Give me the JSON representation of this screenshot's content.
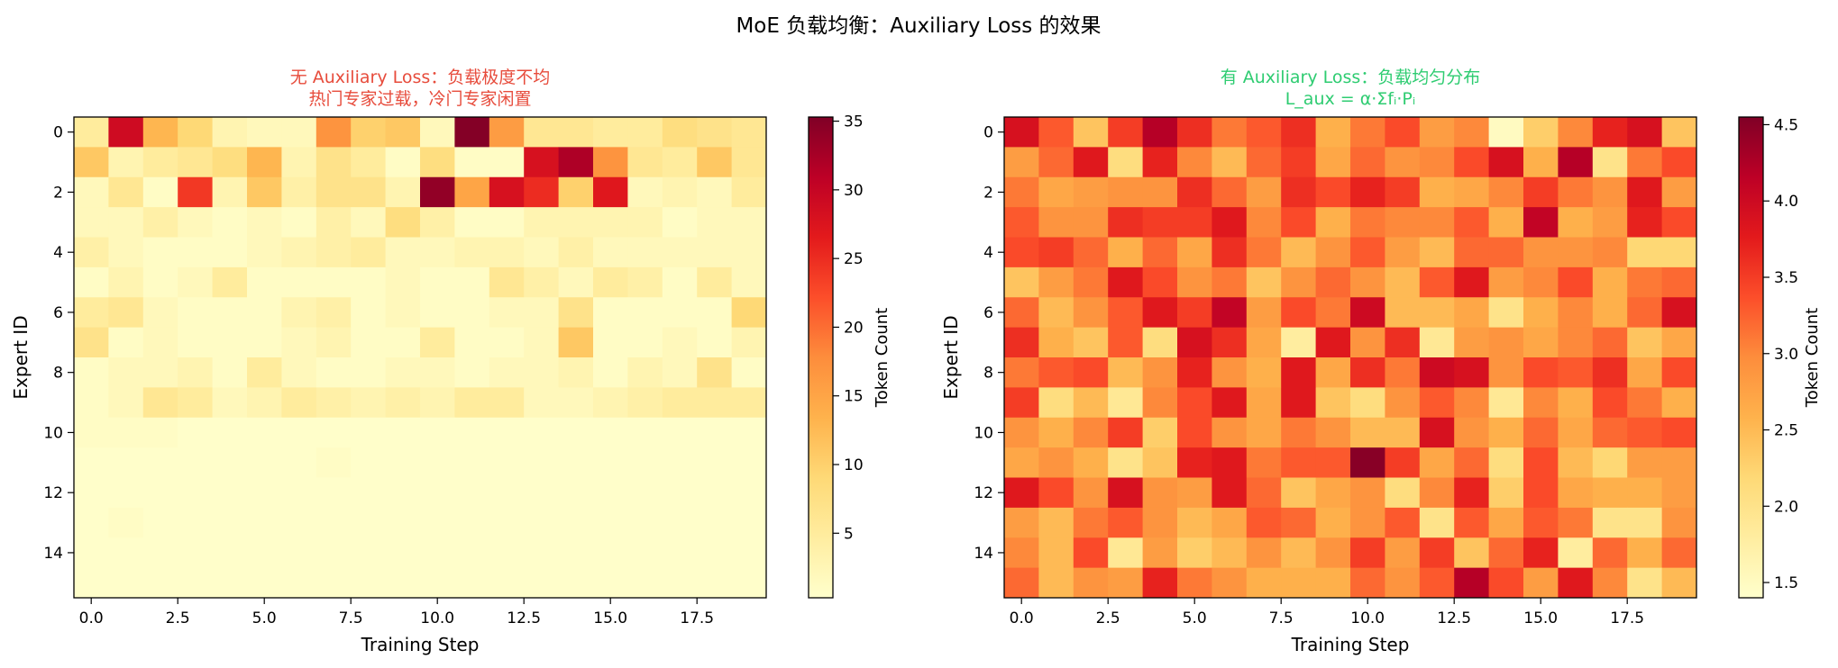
{
  "figure": {
    "suptitle": "MoE 负载均衡：Auxiliary Loss 的效果"
  },
  "colors": {
    "title_left": "#e74c3c",
    "title_right": "#2ecc71",
    "colormap": [
      "#ffffcc",
      "#ffeda0",
      "#fed976",
      "#feb24c",
      "#fd8d3c",
      "#fc4e2a",
      "#e31a1c",
      "#bd0026",
      "#800026"
    ]
  },
  "chart_data": [
    {
      "type": "heatmap",
      "title_line1": "无 Auxiliary Loss：负载极度不均",
      "title_line2": "热门专家过载，冷门专家闲置",
      "xlabel": "Training Step",
      "ylabel": "Expert ID",
      "colorbar_label": "Token Count",
      "x_ticks": [
        0.0,
        2.5,
        5.0,
        7.5,
        10.0,
        12.5,
        15.0,
        17.5
      ],
      "x_tick_labels": [
        "0.0",
        "2.5",
        "5.0",
        "7.5",
        "10.0",
        "12.5",
        "15.0",
        "17.5"
      ],
      "y_ticks": [
        0,
        2,
        4,
        6,
        8,
        10,
        12,
        14
      ],
      "y_tick_labels": [
        "0",
        "2",
        "4",
        "6",
        "8",
        "10",
        "12",
        "14"
      ],
      "vmin": 0.3,
      "vmax": 35.3,
      "colorbar_ticks": [
        5,
        10,
        15,
        20,
        25,
        30,
        35
      ],
      "colorbar_tick_labels": [
        "5",
        "10",
        "15",
        "20",
        "25",
        "30",
        "35"
      ],
      "rows": 16,
      "cols": 20,
      "values": [
        [
          5,
          29,
          13,
          9,
          3,
          2,
          2,
          17,
          10,
          11,
          2,
          35,
          16,
          6,
          6,
          5,
          5,
          8,
          7,
          6
        ],
        [
          11,
          3,
          5,
          6,
          8,
          13,
          3,
          7,
          5,
          1,
          8,
          1,
          1,
          28,
          32,
          17,
          6,
          5,
          11,
          6
        ],
        [
          2,
          6,
          1,
          24,
          3,
          11,
          4,
          7,
          7,
          3,
          34,
          15,
          28,
          25,
          10,
          27,
          2,
          3,
          2,
          5
        ],
        [
          2,
          2,
          4,
          2,
          1,
          2,
          1,
          4,
          2,
          8,
          4,
          1,
          1,
          3,
          3,
          3,
          3,
          1,
          2,
          2
        ],
        [
          4,
          2,
          1,
          1,
          1,
          2,
          3,
          4,
          5,
          2,
          2,
          3,
          3,
          2,
          4,
          2,
          2,
          2,
          2,
          2
        ],
        [
          1,
          3,
          1,
          2,
          5,
          1,
          1,
          1,
          1,
          2,
          1,
          1,
          6,
          4,
          2,
          5,
          4,
          1,
          5,
          2
        ],
        [
          5,
          6,
          2,
          1,
          1,
          1,
          3,
          4,
          1,
          2,
          1,
          1,
          2,
          2,
          7,
          1,
          1,
          1,
          1,
          9
        ],
        [
          7,
          1,
          2,
          1,
          1,
          1,
          2,
          3,
          1,
          1,
          5,
          1,
          1,
          2,
          11,
          1,
          1,
          2,
          1,
          3
        ],
        [
          1,
          2,
          2,
          3,
          1,
          5,
          2,
          1,
          1,
          2,
          2,
          1,
          2,
          2,
          3,
          1,
          3,
          2,
          7,
          1
        ],
        [
          1,
          2,
          6,
          5,
          2,
          3,
          5,
          4,
          3,
          4,
          3,
          5,
          5,
          2,
          2,
          3,
          4,
          5,
          5,
          5
        ],
        [
          1,
          1,
          1,
          0.5,
          0.5,
          0.5,
          0.5,
          0.5,
          0.5,
          0.5,
          0.5,
          0.5,
          0.5,
          0.5,
          0.5,
          0.5,
          0.5,
          0.5,
          0.5,
          0.5
        ],
        [
          0.5,
          0.5,
          0.5,
          0.5,
          0.5,
          0.5,
          0.5,
          1,
          0.5,
          0.5,
          0.5,
          0.5,
          0.5,
          0.5,
          0.5,
          0.5,
          0.5,
          0.5,
          0.5,
          0.5
        ],
        [
          0.5,
          0.5,
          0.5,
          0.5,
          0.5,
          0.5,
          0.5,
          0.5,
          0.5,
          0.5,
          0.5,
          0.5,
          0.5,
          0.5,
          0.5,
          0.5,
          0.5,
          0.5,
          0.5,
          0.5
        ],
        [
          0.5,
          1,
          0.5,
          0.5,
          0.5,
          0.5,
          0.5,
          0.5,
          0.5,
          0.5,
          0.5,
          0.5,
          0.5,
          0.5,
          0.5,
          0.5,
          0.5,
          0.5,
          0.5,
          0.5
        ],
        [
          0.5,
          0.5,
          0.5,
          0.5,
          0.5,
          0.5,
          0.5,
          0.5,
          0.5,
          0.5,
          0.5,
          0.5,
          0.5,
          0.5,
          0.5,
          0.5,
          0.5,
          0.5,
          0.5,
          0.5
        ],
        [
          0.5,
          0.5,
          0.5,
          0.5,
          0.5,
          0.5,
          0.5,
          0.5,
          0.5,
          0.5,
          0.5,
          0.5,
          0.5,
          0.5,
          0.5,
          0.5,
          0.5,
          0.5,
          0.5,
          0.5
        ]
      ]
    },
    {
      "type": "heatmap",
      "title_line1": "有 Auxiliary Loss：负载均匀分布",
      "title_line2": "L_aux = α·Σfᵢ·Pᵢ",
      "xlabel": "Training Step",
      "ylabel": "Expert ID",
      "colorbar_label": "Token Count",
      "x_ticks": [
        0.0,
        2.5,
        5.0,
        7.5,
        10.0,
        12.5,
        15.0,
        17.5
      ],
      "x_tick_labels": [
        "0.0",
        "2.5",
        "5.0",
        "7.5",
        "10.0",
        "12.5",
        "15.0",
        "17.5"
      ],
      "y_ticks": [
        0,
        2,
        4,
        6,
        8,
        10,
        12,
        14
      ],
      "y_tick_labels": [
        "0",
        "2",
        "4",
        "6",
        "8",
        "10",
        "12",
        "14"
      ],
      "vmin": 1.4,
      "vmax": 4.55,
      "colorbar_ticks": [
        1.5,
        2.0,
        2.5,
        3.0,
        3.5,
        4.0,
        4.5
      ],
      "colorbar_tick_labels": [
        "1.5",
        "2.0",
        "2.5",
        "3.0",
        "3.5",
        "4.0",
        "4.5"
      ],
      "rows": 16,
      "cols": 20,
      "values": [
        [
          3.9,
          3.3,
          2.4,
          3.5,
          4.2,
          3.6,
          3.1,
          3.3,
          3.6,
          2.6,
          3.1,
          3.4,
          2.8,
          3.0,
          1.5,
          2.3,
          3.0,
          3.7,
          3.9,
          2.4
        ],
        [
          2.8,
          3.2,
          3.8,
          2.1,
          3.7,
          3.0,
          2.5,
          3.2,
          3.5,
          2.7,
          3.2,
          2.9,
          3.0,
          3.4,
          3.9,
          2.6,
          4.2,
          2.0,
          3.1,
          3.4
        ],
        [
          3.1,
          2.7,
          2.8,
          2.9,
          2.9,
          3.6,
          3.2,
          2.8,
          3.6,
          3.4,
          3.7,
          3.5,
          2.6,
          2.7,
          3.0,
          3.5,
          3.1,
          2.9,
          3.8,
          2.8
        ],
        [
          3.3,
          2.9,
          2.9,
          3.6,
          3.5,
          3.5,
          3.8,
          3.0,
          3.4,
          2.6,
          3.1,
          3.0,
          3.0,
          3.3,
          2.6,
          4.1,
          2.6,
          2.8,
          3.7,
          3.4
        ],
        [
          3.4,
          3.5,
          3.2,
          2.6,
          3.2,
          2.7,
          3.6,
          3.1,
          2.5,
          2.9,
          3.3,
          2.8,
          2.5,
          3.2,
          3.2,
          2.9,
          2.9,
          3.0,
          2.2,
          2.2
        ],
        [
          2.4,
          2.8,
          3.1,
          3.8,
          3.4,
          2.9,
          3.1,
          2.4,
          2.9,
          3.2,
          2.9,
          2.5,
          3.3,
          3.8,
          2.8,
          3.0,
          3.4,
          2.6,
          3.1,
          3.2
        ],
        [
          3.2,
          2.5,
          2.9,
          3.3,
          3.8,
          3.5,
          4.1,
          2.8,
          3.4,
          3.1,
          4.0,
          2.5,
          2.5,
          2.7,
          2.0,
          2.6,
          3.0,
          2.6,
          3.2,
          3.9
        ],
        [
          3.6,
          2.6,
          2.4,
          3.3,
          2.1,
          3.9,
          3.6,
          2.7,
          1.8,
          3.8,
          2.9,
          3.6,
          1.9,
          2.8,
          2.9,
          2.7,
          3.0,
          3.2,
          2.4,
          2.7
        ],
        [
          3.1,
          3.3,
          3.4,
          2.5,
          2.9,
          3.7,
          2.9,
          2.6,
          3.8,
          2.7,
          3.6,
          3.1,
          4.0,
          3.9,
          2.9,
          3.4,
          3.3,
          3.6,
          2.7,
          3.4
        ],
        [
          3.5,
          2.1,
          2.5,
          1.9,
          3.0,
          3.4,
          3.8,
          2.7,
          3.8,
          2.4,
          2.1,
          2.9,
          3.3,
          3.0,
          1.9,
          3.0,
          2.6,
          3.4,
          3.1,
          2.6
        ],
        [
          2.9,
          2.6,
          3.0,
          3.5,
          2.3,
          3.4,
          2.9,
          2.7,
          3.1,
          2.9,
          2.5,
          2.5,
          3.9,
          2.9,
          2.6,
          3.2,
          2.7,
          3.2,
          3.3,
          3.4
        ],
        [
          2.7,
          2.9,
          2.6,
          2.0,
          2.4,
          3.7,
          3.8,
          3.1,
          3.3,
          3.3,
          4.5,
          3.5,
          2.7,
          3.2,
          2.1,
          3.4,
          2.5,
          2.2,
          2.8,
          2.8
        ],
        [
          3.8,
          3.4,
          2.9,
          3.9,
          2.9,
          2.8,
          3.8,
          3.2,
          2.4,
          2.7,
          2.9,
          2.1,
          3.0,
          3.7,
          2.3,
          3.4,
          2.7,
          2.6,
          2.6,
          2.8
        ],
        [
          2.8,
          2.5,
          3.1,
          3.3,
          2.9,
          2.5,
          2.7,
          3.3,
          3.2,
          2.6,
          2.9,
          3.3,
          2.0,
          3.3,
          2.7,
          3.3,
          3.1,
          2.0,
          2.0,
          2.9
        ],
        [
          3.0,
          2.5,
          3.4,
          1.9,
          2.8,
          2.3,
          2.5,
          2.9,
          2.5,
          2.9,
          3.5,
          2.8,
          3.5,
          2.4,
          3.2,
          3.7,
          1.8,
          3.2,
          2.6,
          3.2
        ],
        [
          3.2,
          2.5,
          2.9,
          2.8,
          3.7,
          3.1,
          2.9,
          2.6,
          2.6,
          2.6,
          3.2,
          2.9,
          3.3,
          4.2,
          3.4,
          2.8,
          3.8,
          3.0,
          2.0,
          2.5
        ]
      ]
    }
  ]
}
